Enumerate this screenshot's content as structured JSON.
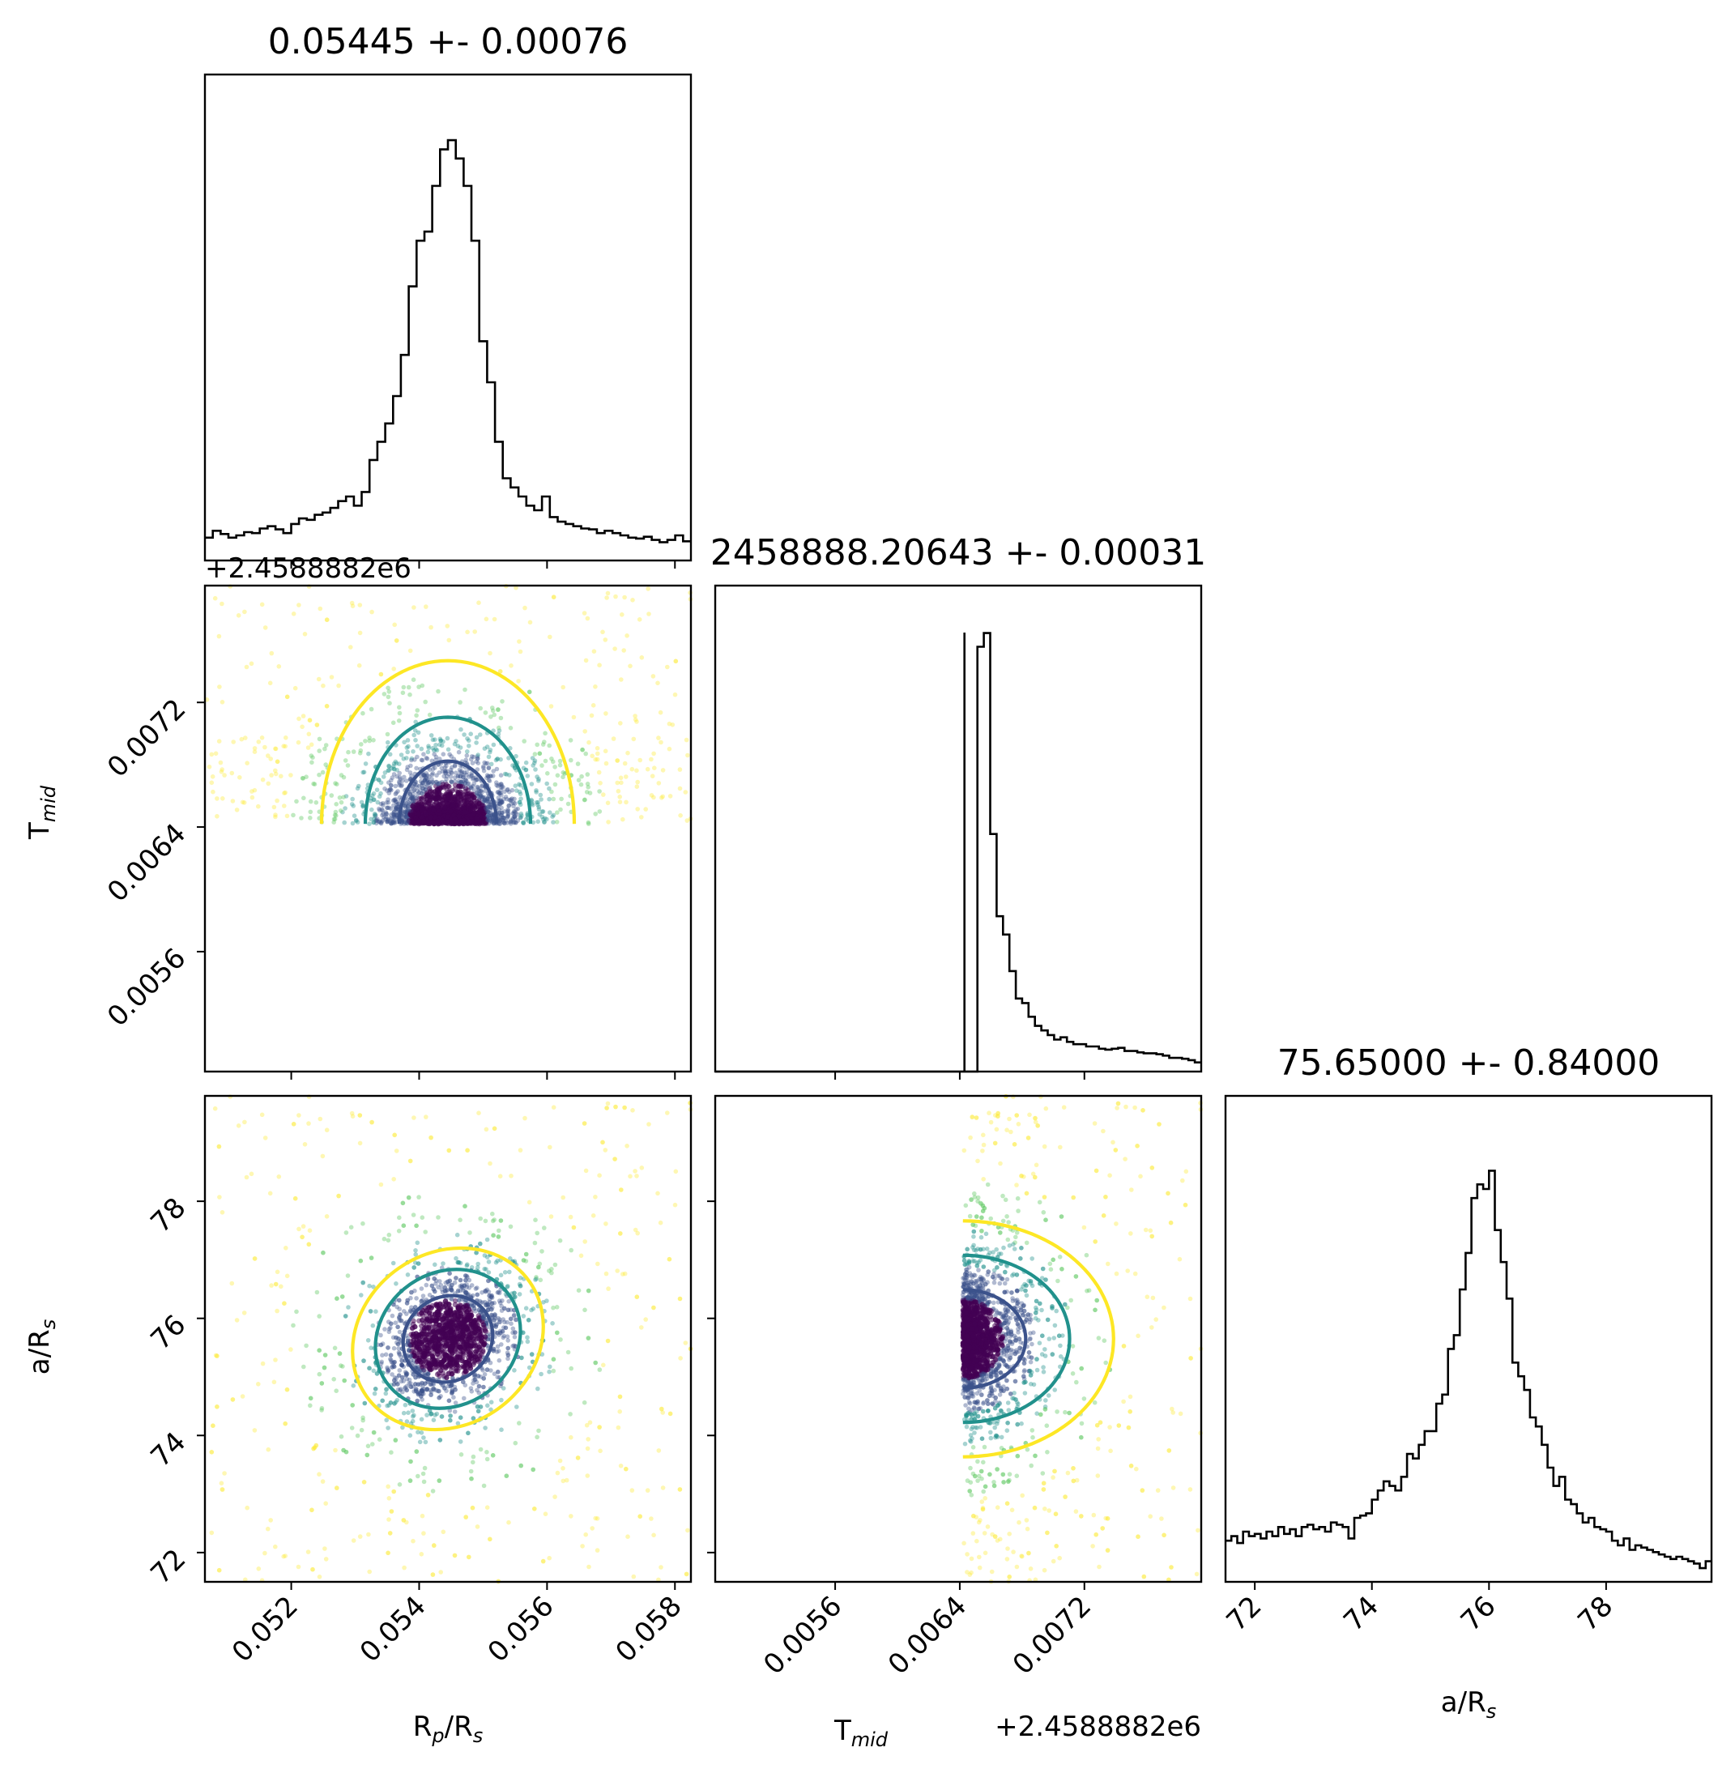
{
  "chart_data": {
    "type": "scatter",
    "kind": "corner-plot",
    "parameters": [
      {
        "key": "rp",
        "title": "0.05445 +- 0.00076",
        "label_main": "R",
        "label_sub": "p",
        "label_mid": "/R",
        "label_sub2": "s",
        "range": [
          0.05065,
          0.05825
        ],
        "ticks": [
          "0.052",
          "0.054",
          "0.056",
          "0.058"
        ],
        "tick_values": [
          0.052,
          0.054,
          0.056,
          0.058
        ],
        "median": 0.05445,
        "sigma": 0.00076,
        "histogram": [
          0.05,
          0.065,
          0.058,
          0.05,
          0.055,
          0.062,
          0.06,
          0.07,
          0.075,
          0.068,
          0.06,
          0.08,
          0.092,
          0.089,
          0.1,
          0.105,
          0.115,
          0.13,
          0.14,
          0.12,
          0.15,
          0.22,
          0.26,
          0.3,
          0.36,
          0.45,
          0.6,
          0.7,
          0.72,
          0.82,
          0.9,
          0.92,
          0.88,
          0.82,
          0.7,
          0.48,
          0.39,
          0.26,
          0.18,
          0.16,
          0.14,
          0.12,
          0.11,
          0.14,
          0.095,
          0.085,
          0.08,
          0.075,
          0.07,
          0.068,
          0.06,
          0.065,
          0.06,
          0.055,
          0.05,
          0.048,
          0.052,
          0.045,
          0.04,
          0.045,
          0.055,
          0.042
        ],
        "hist_peak": 1.0
      },
      {
        "key": "tmid",
        "title": "2458888.20643 +- 0.00031",
        "label_main": "T",
        "label_sub": "mid",
        "label_mid": "",
        "label_sub2": "",
        "axis_offset": "+2.4588882e6",
        "range": [
          0.00483,
          0.00795
        ],
        "ticks": [
          "0.0056",
          "0.0064",
          "0.0072"
        ],
        "tick_values": [
          0.0056,
          0.0064,
          0.0072
        ],
        "median": 0.00643,
        "sigma": 0.00031,
        "histogram": [
          0,
          0,
          0,
          0,
          0,
          0,
          0,
          0,
          0,
          0,
          0,
          0,
          0,
          0,
          0,
          0,
          0,
          0,
          0,
          0,
          0,
          0,
          0,
          0,
          0,
          0,
          0,
          0,
          0,
          0,
          0,
          0,
          0,
          0,
          0,
          0,
          0,
          0,
          0,
          0,
          0,
          0.93,
          0.96,
          0.52,
          0.34,
          0.3,
          0.22,
          0.16,
          0.15,
          0.12,
          0.1,
          0.09,
          0.08,
          0.07,
          0.075,
          0.065,
          0.06,
          0.06,
          0.055,
          0.055,
          0.05,
          0.048,
          0.05,
          0.052,
          0.045,
          0.045,
          0.042,
          0.04,
          0.04,
          0.038,
          0.035,
          0.03,
          0.03,
          0.028,
          0.025,
          0.02
        ],
        "hist_start": 0.00643,
        "hist_peak": 1.0
      },
      {
        "key": "ars",
        "title": "75.65000 +- 0.84000",
        "label_main": "a/R",
        "label_sub": "s",
        "label_mid": "",
        "label_sub2": "",
        "range": [
          71.5,
          79.8
        ],
        "ticks": [
          "72",
          "74",
          "76",
          "78"
        ],
        "tick_values": [
          72,
          74,
          76,
          78
        ],
        "median": 75.65,
        "sigma": 0.84,
        "histogram": [
          0.09,
          0.1,
          0.085,
          0.11,
          0.1,
          0.105,
          0.095,
          0.11,
          0.1,
          0.12,
          0.105,
          0.115,
          0.1,
          0.12,
          0.125,
          0.115,
          0.12,
          0.11,
          0.13,
          0.125,
          0.12,
          0.095,
          0.14,
          0.145,
          0.15,
          0.18,
          0.2,
          0.22,
          0.21,
          0.2,
          0.23,
          0.28,
          0.27,
          0.3,
          0.33,
          0.33,
          0.39,
          0.41,
          0.51,
          0.54,
          0.64,
          0.72,
          0.84,
          0.87,
          0.86,
          0.9,
          0.77,
          0.7,
          0.62,
          0.48,
          0.45,
          0.42,
          0.36,
          0.34,
          0.3,
          0.25,
          0.21,
          0.23,
          0.18,
          0.17,
          0.15,
          0.13,
          0.14,
          0.12,
          0.115,
          0.11,
          0.09,
          0.08,
          0.095,
          0.07,
          0.08,
          0.075,
          0.07,
          0.065,
          0.06,
          0.055,
          0.05,
          0.055,
          0.05,
          0.045,
          0.04,
          0.03,
          0.045
        ],
        "hist_peak": 1.0
      }
    ],
    "pairs": [
      {
        "x": "rp",
        "y": "tmid",
        "correlation": 0.0,
        "y_floor": 0.00642
      },
      {
        "x": "rp",
        "y": "ars",
        "correlation": 0.35
      },
      {
        "x": "tmid",
        "y": "ars",
        "correlation": 0.0,
        "x_floor": 0.00642
      }
    ],
    "contour_colors": [
      "#3b528b",
      "#21918c",
      "#fde725"
    ],
    "point_colors": [
      "#440154",
      "#3b528b",
      "#21918c",
      "#5ec962",
      "#fde725"
    ],
    "sample_count_per_panel": 2600,
    "grid": false,
    "legend": "none"
  }
}
